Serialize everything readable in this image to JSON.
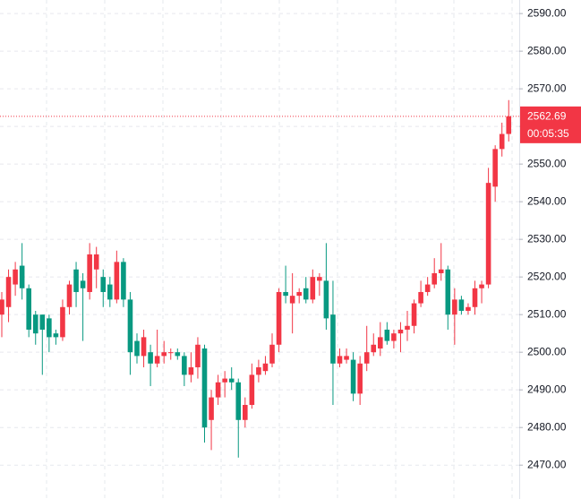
{
  "chart_data": {
    "type": "candlestick",
    "open": [
      2510,
      2512,
      2518,
      2523,
      2517,
      2510,
      2510,
      2509,
      2505,
      2504,
      2512,
      2522,
      2519,
      2516,
      2522,
      2520,
      2518,
      2514,
      2524,
      2514,
      2503,
      2499,
      2500,
      2497,
      2499,
      2500,
      2500,
      2499,
      2494,
      2496,
      2501,
      2482,
      2488,
      2492,
      2493,
      2492,
      2482,
      2486,
      2494,
      2495,
      2497,
      2502,
      2516,
      2513,
      2515,
      2517,
      2514,
      2519,
      2519,
      2510,
      2497,
      2498,
      2498,
      2489,
      2497,
      2500,
      2501,
      2506,
      2503,
      2505,
      2506,
      2507,
      2513,
      2516,
      2518,
      2521,
      2522,
      2510,
      2514,
      2511,
      2512,
      2517,
      2518,
      2544,
      2554,
      2558
    ],
    "high": [
      2516,
      2522,
      2524,
      2529,
      2518,
      2511,
      2510,
      2510,
      2506,
      2514,
      2519,
      2524,
      2521,
      2529,
      2528,
      2522,
      2520,
      2527,
      2525,
      2516,
      2505,
      2506,
      2502,
      2506,
      2503,
      2501,
      2501,
      2500,
      2500,
      2504,
      2502,
      2490,
      2494,
      2495,
      2496,
      2493,
      2488,
      2497,
      2498,
      2499,
      2505,
      2517,
      2523,
      2521,
      2517,
      2520,
      2522,
      2521,
      2529,
      2519,
      2501,
      2501,
      2500,
      2499,
      2507,
      2505,
      2508,
      2508,
      2506,
      2508,
      2511,
      2514,
      2519,
      2520,
      2525,
      2529,
      2523,
      2517,
      2515,
      2513,
      2519,
      2519,
      2549,
      2555,
      2561,
      2567
    ],
    "low": [
      2504,
      2508,
      2515,
      2514,
      2504,
      2502,
      2494,
      2500,
      2502,
      2503,
      2510,
      2512,
      2503,
      2514,
      2517,
      2512,
      2512,
      2513,
      2512,
      2494,
      2497,
      2496,
      2491,
      2496,
      2497,
      2498,
      2498,
      2491,
      2492,
      2493,
      2476,
      2474,
      2486,
      2488,
      2490,
      2472,
      2480,
      2485,
      2492,
      2494,
      2496,
      2500,
      2513,
      2505,
      2513,
      2513,
      2513,
      2515,
      2506,
      2486,
      2496,
      2497,
      2487,
      2486,
      2495,
      2499,
      2499,
      2502,
      2501,
      2500,
      2503,
      2505,
      2512,
      2515,
      2517,
      2519,
      2506,
      2502,
      2510,
      2510,
      2510,
      2513,
      2517,
      2540,
      2552,
      2556
    ],
    "close": [
      2514,
      2520,
      2522,
      2517,
      2506,
      2505,
      2506,
      2504,
      2504,
      2512,
      2518,
      2516,
      2517,
      2526,
      2526,
      2516,
      2514,
      2524,
      2514,
      2500,
      2499,
      2504,
      2497,
      2499,
      2500,
      2500,
      2499,
      2494,
      2496,
      2502,
      2480,
      2488,
      2492,
      2493,
      2492,
      2482,
      2486,
      2494,
      2496,
      2497,
      2502,
      2516,
      2515,
      2515,
      2516,
      2514,
      2520,
      2520,
      2509,
      2497,
      2499,
      2499,
      2489,
      2497,
      2500,
      2502,
      2504,
      2503,
      2505,
      2506,
      2507,
      2513,
      2516,
      2518,
      2521,
      2522,
      2510,
      2514,
      2511,
      2512,
      2517,
      2518,
      2545,
      2554,
      2558,
      2562.69
    ],
    "up_color": "#f23645",
    "down_color": "#089981",
    "countdown": "00:05:35",
    "ylim": [
      2461,
      2593.6
    ],
    "yticks": [
      {
        "value": 2470,
        "label": "2470.00"
      },
      {
        "value": 2480,
        "label": "2480.00"
      },
      {
        "value": 2490,
        "label": "2490.00"
      },
      {
        "value": 2500,
        "label": "2500.00"
      },
      {
        "value": 2510,
        "label": "2510.00"
      },
      {
        "value": 2520,
        "label": "2520.00"
      },
      {
        "value": 2530,
        "label": "2530.00"
      },
      {
        "value": 2540,
        "label": "2540.00"
      },
      {
        "value": 2550,
        "label": "2550.00"
      },
      {
        "value": 2560,
        "label": "2560.00"
      },
      {
        "value": 2570,
        "label": "2570.00"
      },
      {
        "value": 2580,
        "label": "2580.00"
      },
      {
        "value": 2590,
        "label": "2590.00"
      }
    ],
    "grid": true
  }
}
